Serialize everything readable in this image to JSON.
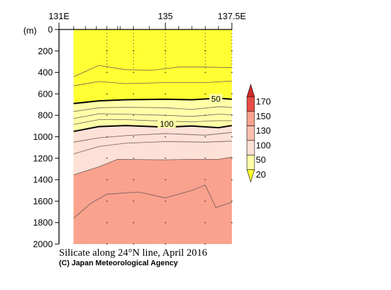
{
  "chart_data": {
    "type": "heatmap",
    "title": "Silicate along 24°N line, April 2016",
    "credit": "(C) Japan Meteorological Agency",
    "yunit": "(m)",
    "x_ticks": [
      "131E",
      "135",
      "137.5E"
    ],
    "x_tick_values": [
      131,
      135,
      137.5
    ],
    "xlim": [
      131,
      137.5
    ],
    "ylim": [
      0,
      2000
    ],
    "y_reversed": true,
    "y_ticks": [
      0,
      200,
      400,
      600,
      800,
      1000,
      1200,
      1400,
      1600,
      1800,
      2000
    ],
    "data_xlim": [
      131.55,
      137.5
    ],
    "station_lons": [
      132.8,
      133.8,
      135.0,
      136.5,
      137.5
    ],
    "colorbar": {
      "levels": [
        20,
        50,
        100,
        130,
        150,
        170
      ],
      "colors": [
        "#ffff33",
        "#ffffa8",
        "#fde0d6",
        "#fbc0b0",
        "#f9a28e",
        "#e84d45",
        "#d22a2a"
      ],
      "labels": [
        "170",
        "150",
        "130",
        "100",
        "50",
        "20"
      ]
    },
    "contour_step": 10,
    "bold_contours": [
      50,
      100
    ],
    "contour_labels": [
      {
        "text": "50",
        "x": 136.9,
        "y": 645
      },
      {
        "text": "100",
        "x": 135.05,
        "y": 880
      }
    ],
    "band_edges": [
      {
        "level": 50,
        "lon": [
          131.55,
          132.5,
          133.5,
          135.0,
          136.0,
          137.0,
          137.5
        ],
        "depth": [
          690,
          665,
          655,
          650,
          655,
          640,
          650
        ]
      },
      {
        "level": 100,
        "lon": [
          131.55,
          132.5,
          133.5,
          135.0,
          136.0,
          137.0,
          137.5
        ],
        "depth": [
          950,
          905,
          895,
          910,
          900,
          915,
          895
        ]
      },
      {
        "level": 130,
        "lon": [
          131.55,
          132.5,
          133.2,
          135.0,
          136.0,
          137.0,
          137.5
        ],
        "depth": [
          1355,
          1280,
          1210,
          1215,
          1210,
          1210,
          1190
        ]
      }
    ],
    "thin_contours": [
      {
        "level": 30,
        "lon": [
          131.55,
          132.5,
          133.5,
          134.5,
          135.5,
          136.5,
          137.5
        ],
        "depth": [
          440,
          335,
          375,
          380,
          350,
          350,
          355
        ]
      },
      {
        "level": 40,
        "lon": [
          131.55,
          132.5,
          133.5,
          135.0,
          136.5,
          137.5
        ],
        "depth": [
          525,
          485,
          505,
          495,
          495,
          480
        ]
      },
      {
        "level": 60,
        "lon": [
          131.55,
          132.5,
          133.5,
          135.0,
          136.0,
          137.0,
          137.5
        ],
        "depth": [
          765,
          730,
          725,
          730,
          745,
          720,
          725
        ]
      },
      {
        "level": 70,
        "lon": [
          131.55,
          132.5,
          133.5,
          135.0,
          136.0,
          137.0,
          137.5
        ],
        "depth": [
          830,
          785,
          790,
          800,
          810,
          790,
          795
        ]
      },
      {
        "level": 80,
        "lon": [
          131.55,
          132.5,
          133.5,
          135.0,
          136.0,
          137.0,
          137.5
        ],
        "depth": [
          885,
          840,
          840,
          855,
          860,
          850,
          850
        ]
      },
      {
        "level": 110,
        "lon": [
          131.55,
          132.5,
          133.5,
          135.0,
          136.5,
          137.5
        ],
        "depth": [
          1050,
          1010,
          990,
          970,
          985,
          960
        ]
      },
      {
        "level": 120,
        "lon": [
          131.55,
          132.5,
          133.5,
          135.0,
          136.5,
          137.5
        ],
        "depth": [
          1160,
          1090,
          1060,
          1045,
          1050,
          1040
        ]
      },
      {
        "level": 140,
        "lon": [
          131.55,
          132.2,
          132.8,
          134.0,
          135.0,
          136.0,
          136.5,
          136.9,
          137.5
        ],
        "depth": [
          1760,
          1620,
          1535,
          1515,
          1570,
          1500,
          1450,
          1660,
          1610
        ]
      }
    ],
    "station_marks": [
      {
        "lon": 132.8,
        "depths": [
          200,
          400,
          600,
          800,
          1000,
          1200,
          1400,
          1600,
          1800,
          2000
        ]
      },
      {
        "lon": 133.8,
        "depths": [
          200,
          400,
          600,
          800,
          1000,
          1200,
          1400,
          1600,
          1800,
          2000
        ]
      },
      {
        "lon": 135.0,
        "depths": [
          200,
          400,
          600,
          800,
          1000,
          1200,
          1400,
          1600,
          1800,
          2000
        ]
      },
      {
        "lon": 136.5,
        "depths": [
          200,
          400,
          600,
          800,
          1000,
          1200,
          1400,
          1600,
          1800,
          2000
        ]
      },
      {
        "lon": 137.5,
        "depths": [
          200,
          400,
          600,
          800,
          1000,
          1200,
          1400,
          1600,
          1800
        ]
      }
    ]
  }
}
